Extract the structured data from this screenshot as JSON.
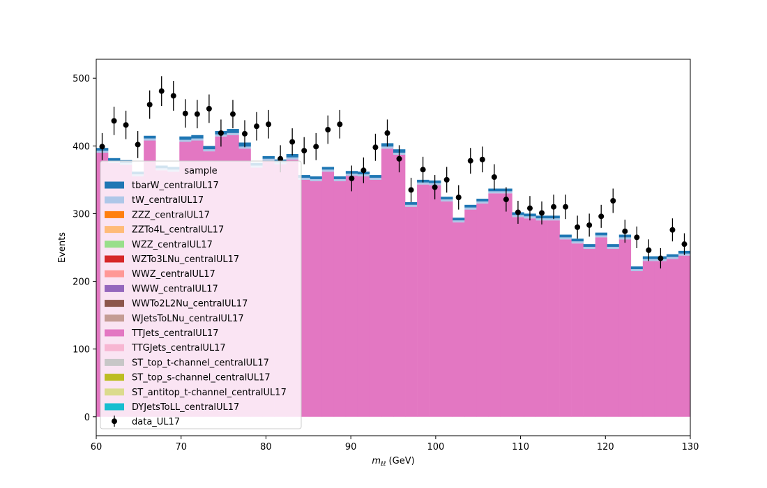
{
  "chart_data": {
    "type": "bar",
    "stacked": true,
    "xlabel_main": "m",
    "xlabel_sub": "ℓℓ",
    "xlabel_unit": " (GeV)",
    "ylabel": "Events",
    "xlim": [
      60,
      130
    ],
    "ylim": [
      -28,
      528
    ],
    "x_ticks": [
      60,
      70,
      80,
      90,
      100,
      110,
      120,
      130
    ],
    "y_ticks": [
      0,
      100,
      200,
      300,
      400,
      500
    ],
    "grid": false,
    "legend": {
      "title": "sample",
      "placement": "upper-left",
      "entries": [
        {
          "label": "tbarW_centralUL17",
          "color": "#1f77b4",
          "kind": "patch"
        },
        {
          "label": "tW_centralUL17",
          "color": "#aec7e8",
          "kind": "patch"
        },
        {
          "label": "ZZZ_centralUL17",
          "color": "#ff7f0e",
          "kind": "patch"
        },
        {
          "label": "ZZTo4L_centralUL17",
          "color": "#ffbb78",
          "kind": "patch"
        },
        {
          "label": "WZZ_centralUL17",
          "color": "#98df8a",
          "kind": "patch"
        },
        {
          "label": "WZTo3LNu_centralUL17",
          "color": "#d62728",
          "kind": "patch"
        },
        {
          "label": "WWZ_centralUL17",
          "color": "#ff9896",
          "kind": "patch"
        },
        {
          "label": "WWW_centralUL17",
          "color": "#9467bd",
          "kind": "patch"
        },
        {
          "label": "WWTo2L2Nu_centralUL17",
          "color": "#8c564b",
          "kind": "patch"
        },
        {
          "label": "WJetsToLNu_centralUL17",
          "color": "#c49c94",
          "kind": "patch"
        },
        {
          "label": "TTJets_centralUL17",
          "color": "#e377c2",
          "kind": "patch"
        },
        {
          "label": "TTGJets_centralUL17",
          "color": "#f7b6d2",
          "kind": "patch"
        },
        {
          "label": "ST_top_t-channel_centralUL17",
          "color": "#c7c7c7",
          "kind": "patch"
        },
        {
          "label": "ST_top_s-channel_centralUL17",
          "color": "#bcbd22",
          "kind": "patch"
        },
        {
          "label": "ST_antitop_t-channel_centralUL17",
          "color": "#dbdb8d",
          "kind": "patch"
        },
        {
          "label": "DYJetsToLL_centralUL17",
          "color": "#17becf",
          "kind": "patch"
        },
        {
          "label": "data_UL17",
          "color": "#000000",
          "kind": "errorbar"
        }
      ]
    },
    "bin_width": 1.4,
    "bin_edges_start": 60,
    "series": [
      {
        "name": "TTJets_centralUL17",
        "color": "#e377c2",
        "values": [
          390,
          375,
          372,
          355,
          408,
          364,
          362,
          406,
          408,
          392,
          414,
          416,
          396,
          368,
          378,
          373,
          380,
          350,
          348,
          362,
          348,
          356,
          355,
          350,
          396,
          387,
          310,
          343,
          342,
          318,
          287,
          306,
          315,
          330,
          330,
          295,
          293,
          290,
          290,
          262,
          256,
          248,
          265,
          248,
          262,
          215,
          230,
          230,
          233,
          238
        ]
      },
      {
        "name": "tW_centralUL17",
        "color": "#aec7e8",
        "values": [
          3,
          3,
          3,
          3,
          3,
          3,
          3,
          3,
          3,
          3,
          3,
          3,
          3,
          3,
          3,
          3,
          3,
          3,
          3,
          3,
          3,
          3,
          3,
          3,
          3,
          3,
          3,
          3,
          3,
          3,
          3,
          3,
          3,
          3,
          3,
          3,
          3,
          3,
          3,
          3,
          3,
          3,
          3,
          3,
          3,
          3,
          3,
          3,
          3,
          3
        ]
      },
      {
        "name": "tbarW_centralUL17",
        "color": "#1f77b4",
        "values": [
          4,
          4,
          4,
          4,
          4,
          4,
          4,
          5,
          5,
          5,
          5,
          6,
          6,
          4,
          4,
          4,
          5,
          4,
          4,
          4,
          4,
          4,
          4,
          4,
          5,
          5,
          4,
          4,
          4,
          4,
          4,
          4,
          4,
          4,
          4,
          4,
          4,
          4,
          4,
          4,
          4,
          4,
          4,
          4,
          4,
          4,
          4,
          4,
          4,
          4
        ]
      }
    ],
    "data_series": {
      "name": "data_UL17",
      "x": [
        60.7,
        62.1,
        63.5,
        64.9,
        66.3,
        67.7,
        69.1,
        70.5,
        71.9,
        73.3,
        74.7,
        76.1,
        77.5,
        78.9,
        80.3,
        81.7,
        83.1,
        84.5,
        85.9,
        87.3,
        88.7,
        90.1,
        91.5,
        92.9,
        94.3,
        95.7,
        97.1,
        98.5,
        99.9,
        101.3,
        102.7,
        104.1,
        105.5,
        106.9,
        108.3,
        109.7,
        111.1,
        112.5,
        113.9,
        115.3,
        116.7,
        118.1,
        119.5,
        120.9,
        122.3,
        123.7,
        125.1,
        126.5,
        127.9,
        129.3
      ],
      "y": [
        399,
        437,
        431,
        402,
        461,
        481,
        474,
        448,
        447,
        455,
        419,
        447,
        418,
        429,
        432,
        381,
        406,
        393,
        399,
        424,
        432,
        352,
        364,
        398,
        419,
        381,
        335,
        365,
        339,
        350,
        324,
        378,
        380,
        354,
        321,
        302,
        308,
        301,
        310,
        310,
        280,
        283,
        296,
        319,
        274,
        265,
        246,
        234,
        276,
        255
      ],
      "yerr": [
        20,
        21,
        21,
        20,
        21,
        22,
        22,
        21,
        21,
        21,
        20,
        21,
        20,
        21,
        21,
        20,
        20,
        20,
        20,
        21,
        21,
        19,
        19,
        20,
        20,
        20,
        18,
        19,
        18,
        19,
        18,
        19,
        19,
        19,
        18,
        17,
        18,
        17,
        18,
        18,
        17,
        17,
        17,
        18,
        17,
        16,
        16,
        15,
        17,
        16
      ]
    }
  }
}
